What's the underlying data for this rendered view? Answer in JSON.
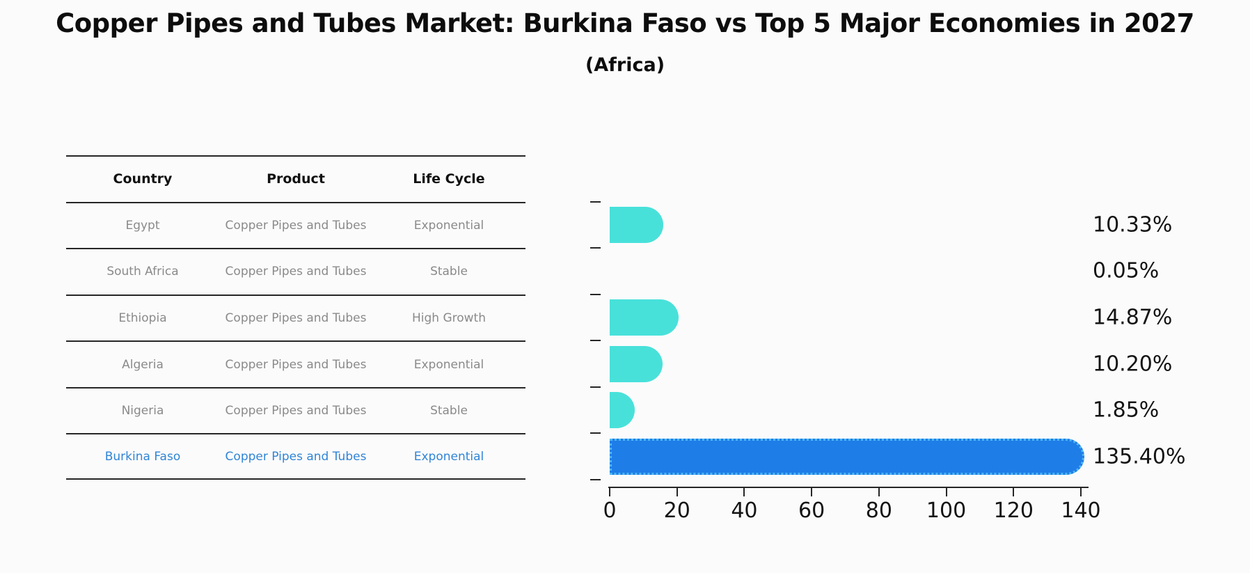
{
  "title": "Copper Pipes and Tubes Market: Burkina Faso vs Top 5 Major Economies in 2027",
  "subtitle": "(Africa)",
  "colors": {
    "bar_default": "#48e1da",
    "bar_highlight": "#1f7de8",
    "bar_highlight_border": "#4db9f5",
    "row_text": "#8a8a8a",
    "highlight_text": "#3085d6"
  },
  "table": {
    "headers": [
      "Country",
      "Product",
      "Life Cycle"
    ],
    "rows": [
      {
        "country": "Egypt",
        "product": "Copper Pipes and Tubes",
        "life_cycle": "Exponential"
      },
      {
        "country": "South Africa",
        "product": "Copper Pipes and Tubes",
        "life_cycle": "Stable"
      },
      {
        "country": "Ethiopia",
        "product": "Copper Pipes and Tubes",
        "life_cycle": "High Growth"
      },
      {
        "country": "Algeria",
        "product": "Copper Pipes and Tubes",
        "life_cycle": "Exponential"
      },
      {
        "country": "Nigeria",
        "product": "Copper Pipes and Tubes",
        "life_cycle": "Stable"
      },
      {
        "country": "Burkina Faso",
        "product": "Copper Pipes and Tubes",
        "life_cycle": "Exponential"
      }
    ]
  },
  "chart_data": {
    "type": "bar",
    "orientation": "horizontal",
    "title": "Copper Pipes and Tubes Market: Burkina Faso vs Top 5 Major Economies in 2027",
    "subtitle": "(Africa)",
    "categories": [
      "Egypt",
      "South Africa",
      "Ethiopia",
      "Algeria",
      "Nigeria",
      "Burkina Faso"
    ],
    "values": [
      10.33,
      0.05,
      14.87,
      10.2,
      1.85,
      135.4
    ],
    "value_labels": [
      "10.33%",
      "0.05%",
      "14.87%",
      "10.20%",
      "1.85%",
      "135.40%"
    ],
    "highlight_index": 5,
    "xlim": [
      0,
      140
    ],
    "x_ticks": [
      0,
      20,
      40,
      60,
      80,
      100,
      120,
      140
    ],
    "grid": false,
    "legend": false
  }
}
